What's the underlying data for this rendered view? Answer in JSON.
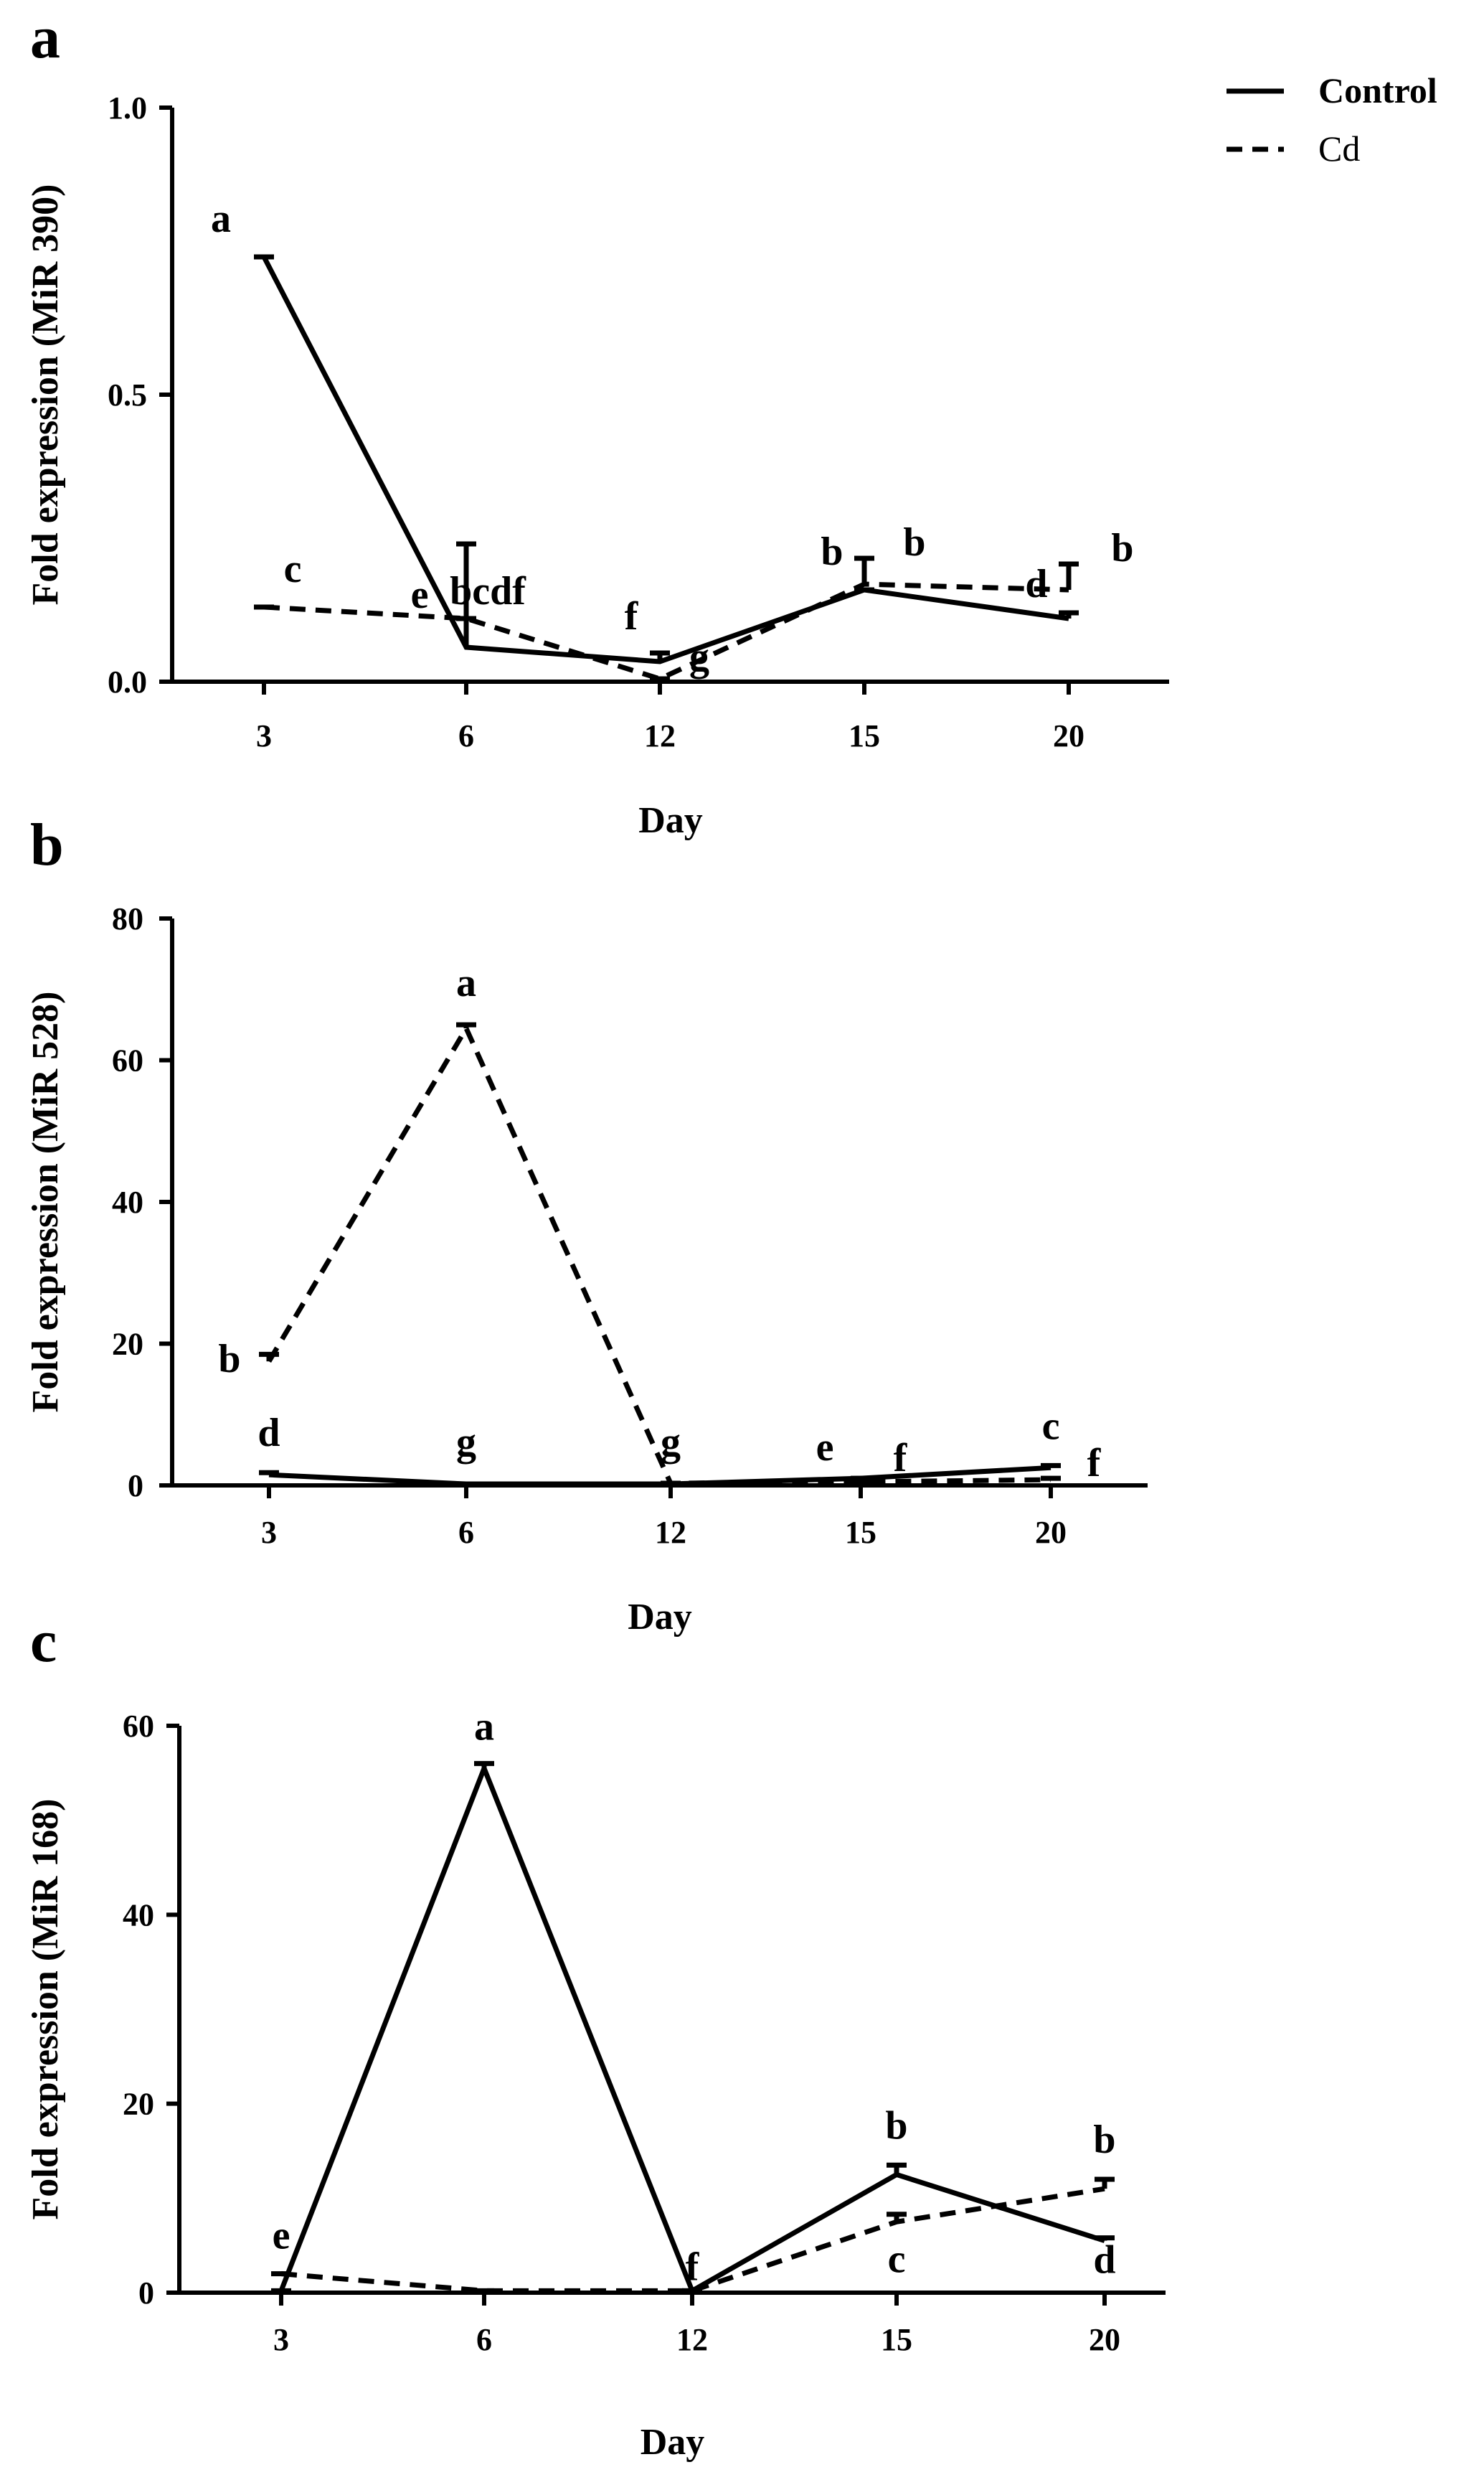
{
  "legend": {
    "entries": [
      {
        "label": "Control",
        "style": "solid"
      },
      {
        "label": "Cd",
        "style": "dashed"
      }
    ]
  },
  "chart_data": [
    {
      "panel": "a",
      "type": "line",
      "categories": [
        "3",
        "6",
        "12",
        "15",
        "20"
      ],
      "xlabel": "Day",
      "ylabel": "Fold expression (MiR 390)",
      "ylim": [
        0,
        1.0
      ],
      "yticks": [
        "0.0",
        "0.5",
        "1.0"
      ],
      "series": [
        {
          "name": "Control",
          "style": "solid",
          "values": [
            0.74,
            0.06,
            0.035,
            0.16,
            0.11
          ],
          "err": [
            0.0,
            0.18,
            0.015,
            0.0,
            0.01
          ],
          "sig": [
            "a",
            "bcdf",
            "f",
            "b",
            "d"
          ]
        },
        {
          "name": "Cd",
          "style": "dashed",
          "values": [
            0.13,
            0.11,
            0.005,
            0.17,
            0.16
          ],
          "err": [
            0.0,
            0.0,
            0.0,
            0.045,
            0.045
          ],
          "sig": [
            "c",
            "e",
            "g",
            "b",
            "b"
          ]
        }
      ]
    },
    {
      "panel": "b",
      "type": "line",
      "categories": [
        "3",
        "6",
        "12",
        "15",
        "20"
      ],
      "xlabel": "Day",
      "ylabel": "Fold expression (MiR 528)",
      "ylim": [
        0,
        80
      ],
      "yticks": [
        "0",
        "20",
        "40",
        "60",
        "80"
      ],
      "series": [
        {
          "name": "Control",
          "style": "solid",
          "values": [
            1.5,
            0.2,
            0.2,
            1.0,
            2.5
          ],
          "err": [
            0.3,
            0.0,
            0.0,
            0.0,
            0.3
          ],
          "sig": [
            "d",
            "g",
            "g",
            "e",
            "c"
          ]
        },
        {
          "name": "Cd",
          "style": "dashed",
          "values": [
            17.5,
            64.5,
            0.3,
            0.5,
            0.8
          ],
          "err": [
            1.0,
            0.5,
            0.0,
            0.0,
            0.2
          ],
          "sig": [
            "b",
            "a",
            "",
            "f",
            "f"
          ]
        }
      ]
    },
    {
      "panel": "c",
      "type": "line",
      "categories": [
        "3",
        "6",
        "12",
        "15",
        "20"
      ],
      "xlabel": "Day",
      "ylabel": "Fold expression (MiR 168)",
      "ylim": [
        0,
        60
      ],
      "yticks": [
        "0",
        "20",
        "40",
        "60"
      ],
      "series": [
        {
          "name": "Control",
          "style": "solid",
          "values": [
            0.2,
            55.5,
            0.2,
            12.5,
            5.5
          ],
          "err": [
            0.0,
            0.5,
            0.0,
            1.0,
            0.3
          ],
          "sig": [
            "",
            "a",
            "f",
            "b",
            "d"
          ]
        },
        {
          "name": "Cd",
          "style": "dashed",
          "values": [
            2.0,
            0.2,
            0.2,
            7.5,
            11.0
          ],
          "err": [
            0.0,
            0.0,
            0.0,
            0.8,
            1.0
          ],
          "sig": [
            "e",
            "",
            "",
            "c",
            "b"
          ]
        }
      ]
    }
  ]
}
